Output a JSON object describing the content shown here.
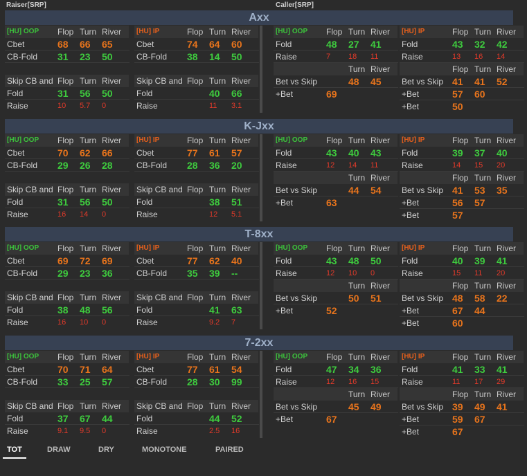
{
  "header": {
    "left": "Raiser[SRP]",
    "right": "Caller[SRP]"
  },
  "sections": [
    {
      "title": "Axx",
      "raiser_oop": {
        "tag": "[HU] OOP",
        "cols": [
          "Flop",
          "Turn",
          "River"
        ],
        "rows": [
          {
            "label": "Cbet",
            "vals": [
              "68",
              "66",
              "65"
            ],
            "color": "orange"
          },
          {
            "label": "CB-Fold",
            "vals": [
              "31",
              "23",
              "50"
            ],
            "color": "green"
          }
        ],
        "skip_label": "Skip CB and",
        "skip_rows": [
          {
            "label": "Fold",
            "vals": [
              "31",
              "56",
              "50"
            ],
            "color": "green"
          },
          {
            "label": "Raise",
            "vals": [
              "10",
              "5.7",
              "0"
            ],
            "color": "red"
          }
        ]
      },
      "raiser_ip": {
        "tag": "[HU] IP",
        "cols": [
          "Flop",
          "Turn",
          "River"
        ],
        "rows": [
          {
            "label": "Cbet",
            "vals": [
              "74",
              "64",
              "60"
            ],
            "color": "orange"
          },
          {
            "label": "CB-Fold",
            "vals": [
              "38",
              "14",
              "50"
            ],
            "color": "green"
          }
        ],
        "skip_label": "Skip CB and",
        "skip_rows": [
          {
            "label": "Fold",
            "vals": [
              "",
              "40",
              "66"
            ],
            "color": "green"
          },
          {
            "label": "Raise",
            "vals": [
              "",
              "11",
              "3.1"
            ],
            "color": "red"
          }
        ]
      },
      "caller_oop": {
        "tag": "[HU] OOP",
        "cols": [
          "Flop",
          "Turn",
          "River"
        ],
        "rows": [
          {
            "label": "Fold",
            "vals": [
              "48",
              "27",
              "41"
            ],
            "color": "green"
          },
          {
            "label": "Raise",
            "vals": [
              "7",
              "18",
              "11"
            ],
            "color": "red"
          }
        ],
        "bet_cols": [
          "Turn",
          "River"
        ],
        "bet_rows": [
          {
            "label": "Bet vs Skip",
            "vals": [
              "48",
              "45"
            ],
            "color": "orange"
          },
          {
            "label": "+Bet",
            "vals": [
              "69",
              ""
            ],
            "color": "orange"
          }
        ]
      },
      "caller_ip": {
        "tag": "[HU] IP",
        "cols": [
          "Flop",
          "Turn",
          "River"
        ],
        "rows": [
          {
            "label": "Fold",
            "vals": [
              "43",
              "32",
              "42"
            ],
            "color": "green"
          },
          {
            "label": "Raise",
            "vals": [
              "13",
              "16",
              "14"
            ],
            "color": "red"
          }
        ],
        "bet_cols": [
          "Flop",
          "Turn",
          "River"
        ],
        "bet_rows": [
          {
            "label": "Bet vs Skip",
            "vals": [
              "41",
              "41",
              "52"
            ],
            "color": "orange"
          },
          {
            "label": "+Bet",
            "vals": [
              "57",
              "60",
              ""
            ],
            "color": "orange"
          },
          {
            "label": "+Bet",
            "vals": [
              "50",
              "",
              ""
            ],
            "color": "orange"
          }
        ]
      }
    },
    {
      "title": "K-Jxx",
      "raiser_oop": {
        "tag": "[HU] OOP",
        "cols": [
          "Flop",
          "Turn",
          "River"
        ],
        "rows": [
          {
            "label": "Cbet",
            "vals": [
              "70",
              "62",
              "66"
            ],
            "color": "orange"
          },
          {
            "label": "CB-Fold",
            "vals": [
              "29",
              "26",
              "28"
            ],
            "color": "green"
          }
        ],
        "skip_label": "Skip CB and",
        "skip_rows": [
          {
            "label": "Fold",
            "vals": [
              "31",
              "56",
              "50"
            ],
            "color": "green"
          },
          {
            "label": "Raise",
            "vals": [
              "16",
              "14",
              "0"
            ],
            "color": "red"
          }
        ]
      },
      "raiser_ip": {
        "tag": "[HU] IP",
        "cols": [
          "Flop",
          "Turn",
          "River"
        ],
        "rows": [
          {
            "label": "Cbet",
            "vals": [
              "77",
              "61",
              "57"
            ],
            "color": "orange"
          },
          {
            "label": "CB-Fold",
            "vals": [
              "28",
              "36",
              "20"
            ],
            "color": "green"
          }
        ],
        "skip_label": "Skip CB and",
        "skip_rows": [
          {
            "label": "Fold",
            "vals": [
              "",
              "38",
              "51"
            ],
            "color": "green"
          },
          {
            "label": "Raise",
            "vals": [
              "",
              "12",
              "5.1"
            ],
            "color": "red"
          }
        ]
      },
      "caller_oop": {
        "tag": "[HU] OOP",
        "cols": [
          "Flop",
          "Turn",
          "River"
        ],
        "rows": [
          {
            "label": "Fold",
            "vals": [
              "43",
              "40",
              "43"
            ],
            "color": "green"
          },
          {
            "label": "Raise",
            "vals": [
              "12",
              "14",
              "11"
            ],
            "color": "red"
          }
        ],
        "bet_cols": [
          "Turn",
          "River"
        ],
        "bet_rows": [
          {
            "label": "Bet vs Skip",
            "vals": [
              "44",
              "54"
            ],
            "color": "orange"
          },
          {
            "label": "+Bet",
            "vals": [
              "63",
              ""
            ],
            "color": "orange"
          }
        ]
      },
      "caller_ip": {
        "tag": "[HU] IP",
        "cols": [
          "Flop",
          "Turn",
          "River"
        ],
        "rows": [
          {
            "label": "Fold",
            "vals": [
              "39",
              "37",
              "40"
            ],
            "color": "green"
          },
          {
            "label": "Raise",
            "vals": [
              "14",
              "15",
              "20"
            ],
            "color": "red"
          }
        ],
        "bet_cols": [
          "Flop",
          "Turn",
          "River"
        ],
        "bet_rows": [
          {
            "label": "Bet vs Skip",
            "vals": [
              "41",
              "53",
              "35"
            ],
            "color": "orange"
          },
          {
            "label": "+Bet",
            "vals": [
              "56",
              "57",
              ""
            ],
            "color": "orange"
          },
          {
            "label": "+Bet",
            "vals": [
              "57",
              "",
              ""
            ],
            "color": "orange"
          }
        ]
      }
    },
    {
      "title": "T-8xx",
      "raiser_oop": {
        "tag": "[HU] OOP",
        "cols": [
          "Flop",
          "Turn",
          "River"
        ],
        "rows": [
          {
            "label": "Cbet",
            "vals": [
              "69",
              "72",
              "69"
            ],
            "color": "orange"
          },
          {
            "label": "CB-Fold",
            "vals": [
              "29",
              "23",
              "36"
            ],
            "color": "green"
          }
        ],
        "skip_label": "Skip CB and",
        "skip_rows": [
          {
            "label": "Fold",
            "vals": [
              "38",
              "48",
              "56"
            ],
            "color": "green"
          },
          {
            "label": "Raise",
            "vals": [
              "16",
              "10",
              "0"
            ],
            "color": "red"
          }
        ]
      },
      "raiser_ip": {
        "tag": "[HU] IP",
        "cols": [
          "Flop",
          "Turn",
          "River"
        ],
        "rows": [
          {
            "label": "Cbet",
            "vals": [
              "77",
              "62",
              "40"
            ],
            "color": "orange"
          },
          {
            "label": "CB-Fold",
            "vals": [
              "35",
              "39",
              "--"
            ],
            "color": "green"
          }
        ],
        "skip_label": "Skip CB and",
        "skip_rows": [
          {
            "label": "Fold",
            "vals": [
              "",
              "41",
              "63"
            ],
            "color": "green"
          },
          {
            "label": "Raise",
            "vals": [
              "",
              "9.2",
              "7"
            ],
            "color": "red"
          }
        ]
      },
      "caller_oop": {
        "tag": "[HU] OOP",
        "cols": [
          "Flop",
          "Turn",
          "River"
        ],
        "rows": [
          {
            "label": "Fold",
            "vals": [
              "43",
              "48",
              "50"
            ],
            "color": "green"
          },
          {
            "label": "Raise",
            "vals": [
              "12",
              "10",
              "0"
            ],
            "color": "red"
          }
        ],
        "bet_cols": [
          "Turn",
          "River"
        ],
        "bet_rows": [
          {
            "label": "Bet vs Skip",
            "vals": [
              "50",
              "51"
            ],
            "color": "orange"
          },
          {
            "label": "+Bet",
            "vals": [
              "52",
              ""
            ],
            "color": "orange"
          }
        ]
      },
      "caller_ip": {
        "tag": "[HU] IP",
        "cols": [
          "Flop",
          "Turn",
          "River"
        ],
        "rows": [
          {
            "label": "Fold",
            "vals": [
              "40",
              "39",
              "41"
            ],
            "color": "green"
          },
          {
            "label": "Raise",
            "vals": [
              "15",
              "11",
              "20"
            ],
            "color": "red"
          }
        ],
        "bet_cols": [
          "Flop",
          "Turn",
          "River"
        ],
        "bet_rows": [
          {
            "label": "Bet vs Skip",
            "vals": [
              "48",
              "58",
              "22"
            ],
            "color": "orange"
          },
          {
            "label": "+Bet",
            "vals": [
              "67",
              "44",
              ""
            ],
            "color": "orange"
          },
          {
            "label": "+Bet",
            "vals": [
              "60",
              "",
              ""
            ],
            "color": "orange"
          }
        ]
      }
    },
    {
      "title": "7-2xx",
      "raiser_oop": {
        "tag": "[HU] OOP",
        "cols": [
          "Flop",
          "Turn",
          "River"
        ],
        "rows": [
          {
            "label": "Cbet",
            "vals": [
              "70",
              "71",
              "64"
            ],
            "color": "orange"
          },
          {
            "label": "CB-Fold",
            "vals": [
              "33",
              "25",
              "57"
            ],
            "color": "green"
          }
        ],
        "skip_label": "Skip CB and",
        "skip_rows": [
          {
            "label": "Fold",
            "vals": [
              "37",
              "67",
              "44"
            ],
            "color": "green"
          },
          {
            "label": "Raise",
            "vals": [
              "9.1",
              "9.5",
              "0"
            ],
            "color": "red"
          }
        ]
      },
      "raiser_ip": {
        "tag": "[HU] IP",
        "cols": [
          "Flop",
          "Turn",
          "River"
        ],
        "rows": [
          {
            "label": "Cbet",
            "vals": [
              "77",
              "61",
              "54"
            ],
            "color": "orange"
          },
          {
            "label": "CB-Fold",
            "vals": [
              "28",
              "30",
              "99"
            ],
            "color": "green"
          }
        ],
        "skip_label": "Skip CB and",
        "skip_rows": [
          {
            "label": "Fold",
            "vals": [
              "",
              "44",
              "52"
            ],
            "color": "green"
          },
          {
            "label": "Raise",
            "vals": [
              "",
              "2.5",
              "16"
            ],
            "color": "red"
          }
        ]
      },
      "caller_oop": {
        "tag": "[HU] OOP",
        "cols": [
          "Flop",
          "Turn",
          "River"
        ],
        "rows": [
          {
            "label": "Fold",
            "vals": [
              "47",
              "34",
              "36"
            ],
            "color": "green"
          },
          {
            "label": "Raise",
            "vals": [
              "12",
              "16",
              "15"
            ],
            "color": "red"
          }
        ],
        "bet_cols": [
          "Turn",
          "River"
        ],
        "bet_rows": [
          {
            "label": "Bet vs Skip",
            "vals": [
              "45",
              "49"
            ],
            "color": "orange"
          },
          {
            "label": "+Bet",
            "vals": [
              "67",
              ""
            ],
            "color": "orange"
          }
        ]
      },
      "caller_ip": {
        "tag": "[HU] IP",
        "cols": [
          "Flop",
          "Turn",
          "River"
        ],
        "rows": [
          {
            "label": "Fold",
            "vals": [
              "41",
              "33",
              "41"
            ],
            "color": "green"
          },
          {
            "label": "Raise",
            "vals": [
              "11",
              "17",
              "29"
            ],
            "color": "red"
          }
        ],
        "bet_cols": [
          "Flop",
          "Turn",
          "River"
        ],
        "bet_rows": [
          {
            "label": "Bet vs Skip",
            "vals": [
              "39",
              "49",
              "41"
            ],
            "color": "orange"
          },
          {
            "label": "+Bet",
            "vals": [
              "59",
              "67",
              ""
            ],
            "color": "orange"
          },
          {
            "label": "+Bet",
            "vals": [
              "67",
              "",
              ""
            ],
            "color": "orange"
          }
        ]
      }
    }
  ],
  "tabs": [
    {
      "label": "TOT",
      "active": true
    },
    {
      "label": "DRAW",
      "active": false
    },
    {
      "label": "DRY",
      "active": false
    },
    {
      "label": "MONOTONE",
      "active": false
    },
    {
      "label": "PAIRED",
      "active": false
    }
  ],
  "colors": {
    "orange": "#e8741c",
    "green": "#3ecb3e",
    "red": "#e23a2a",
    "band": "#374153",
    "background": "#2b2b2b"
  }
}
